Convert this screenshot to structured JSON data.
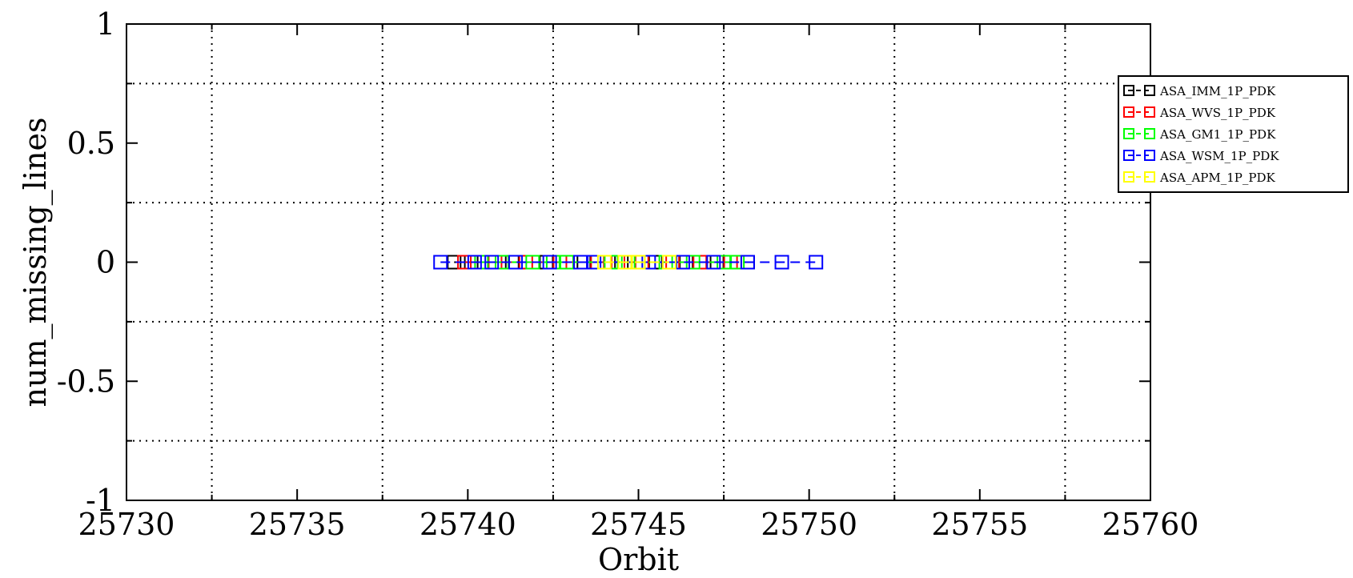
{
  "chart_data": {
    "type": "scatter",
    "title": "",
    "xlabel": "Orbit",
    "ylabel": "num_missing_lines",
    "xlim": [
      25730,
      25760
    ],
    "ylim": [
      -1,
      1
    ],
    "x_ticks": [
      25730,
      25735,
      25740,
      25745,
      25750,
      25755,
      25760
    ],
    "y_ticks": [
      -1,
      -0.5,
      0,
      0.5,
      1
    ],
    "x_tick_labels": [
      "25730",
      "25735",
      "25740",
      "25745",
      "25750",
      "25755",
      "25760"
    ],
    "y_tick_labels": [
      "-1",
      "-0.5",
      "0",
      "0.5",
      "1"
    ],
    "grid": true,
    "marker": "open-square",
    "legend_position": "top-right",
    "series": [
      {
        "name": "ASA_IMM_1P_PDK",
        "color": "#000000",
        "x": [
          25739.6,
          25740.1,
          25741.3,
          25742.3,
          25743.4,
          25744.5,
          25745.5,
          25746.4,
          25747.3,
          25748.2
        ],
        "y": [
          0,
          0,
          0,
          0,
          0,
          0,
          0,
          0,
          0,
          0
        ]
      },
      {
        "name": "ASA_WVS_1P_PDK",
        "color": "#ff0000",
        "x": [
          25739.9,
          25740.8,
          25741.7,
          25742.7,
          25743.8,
          25744.4,
          25745.1,
          25746.0,
          25746.8,
          25747.7
        ],
        "y": [
          0,
          0,
          0,
          0,
          0,
          0,
          0,
          0,
          0,
          0
        ]
      },
      {
        "name": "ASA_GM1_1P_PDK",
        "color": "#00ff00",
        "x": [
          25740.4,
          25741.0,
          25741.9,
          25742.5,
          25742.9,
          25744.2,
          25744.7,
          25745.8,
          25746.6,
          25747.5,
          25747.9
        ],
        "y": [
          0,
          0,
          0,
          0,
          0,
          0,
          0,
          0,
          0,
          0,
          0
        ]
      },
      {
        "name": "ASA_WSM_1P_PDK",
        "color": "#0000ff",
        "x": [
          25739.2,
          25740.2,
          25740.7,
          25741.4,
          25742.4,
          25743.3,
          25743.7,
          25745.3,
          25746.3,
          25747.2,
          25748.2,
          25749.2,
          25750.2
        ],
        "y": [
          0,
          0,
          0,
          0,
          0,
          0,
          0,
          0,
          0,
          0,
          0,
          0,
          0
        ]
      },
      {
        "name": "ASA_APM_1P_PDK",
        "color": "#ffff00",
        "x": [
          25744.0,
          25744.6,
          25745.0,
          25745.9
        ],
        "y": [
          0,
          0,
          0,
          0
        ]
      }
    ]
  }
}
